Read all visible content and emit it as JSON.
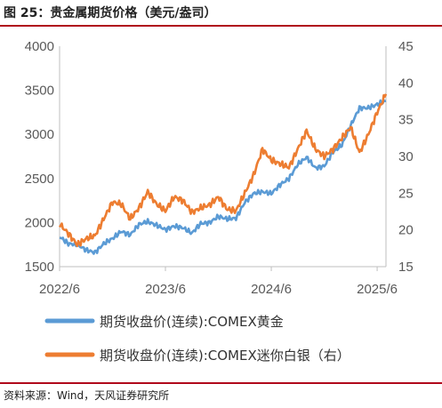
{
  "figure": {
    "title": "图 25：贵金属期货价格（美元/盎司）",
    "source": "资料来源：Wind，天风证券研究所"
  },
  "colors": {
    "gold": "#5b9bd5",
    "silver": "#ed7d31",
    "rule": "#b0081b"
  },
  "chart_data": {
    "type": "line",
    "title": "",
    "x_tick_labels": [
      "2022/6",
      "2023/6",
      "2024/6",
      "2025/6"
    ],
    "x": [
      "2022-06",
      "2022-07",
      "2022-08",
      "2022-09",
      "2022-10",
      "2022-11",
      "2022-12",
      "2023-01",
      "2023-02",
      "2023-03",
      "2023-04",
      "2023-05",
      "2023-06",
      "2023-07",
      "2023-08",
      "2023-09",
      "2023-10",
      "2023-11",
      "2023-12",
      "2024-01",
      "2024-02",
      "2024-03",
      "2024-04",
      "2024-05",
      "2024-06",
      "2024-07",
      "2024-08",
      "2024-09",
      "2024-10",
      "2024-11",
      "2024-12",
      "2025-01",
      "2025-02",
      "2025-03",
      "2025-04",
      "2025-05",
      "2025-06",
      "2025-07"
    ],
    "left_axis": {
      "ylim": [
        1500,
        4000
      ],
      "ticks": [
        "1500",
        "2000",
        "2500",
        "3000",
        "3500",
        "4000"
      ]
    },
    "right_axis": {
      "ylim": [
        15,
        45
      ],
      "ticks": [
        "15",
        "20",
        "25",
        "30",
        "35",
        "40",
        "45"
      ]
    },
    "grid": false,
    "legend_position": "bottom",
    "series": [
      {
        "name": "期货收盘价(连续):COMEX黄金",
        "axis": "left",
        "values": [
          1840,
          1760,
          1750,
          1690,
          1660,
          1760,
          1820,
          1900,
          1860,
          1980,
          2010,
          1970,
          1920,
          1960,
          1940,
          1880,
          1990,
          2000,
          2070,
          2040,
          2050,
          2230,
          2330,
          2350,
          2330,
          2430,
          2500,
          2660,
          2740,
          2620,
          2640,
          2800,
          2880,
          3100,
          3300,
          3300,
          3340,
          3380
        ]
      },
      {
        "name": "期货收盘价(连续):COMEX迷你白银（右）",
        "axis": "right",
        "values": [
          20.8,
          19.5,
          18.0,
          18.8,
          19.2,
          21.5,
          23.8,
          23.5,
          21.5,
          23.0,
          25.2,
          23.5,
          22.6,
          24.5,
          24.0,
          22.4,
          23.0,
          23.4,
          24.5,
          22.8,
          22.6,
          25.0,
          27.5,
          31.0,
          29.5,
          29.0,
          28.5,
          31.0,
          33.5,
          31.0,
          30.0,
          31.0,
          32.5,
          34.0,
          30.5,
          33.0,
          36.0,
          38.5
        ]
      }
    ]
  }
}
